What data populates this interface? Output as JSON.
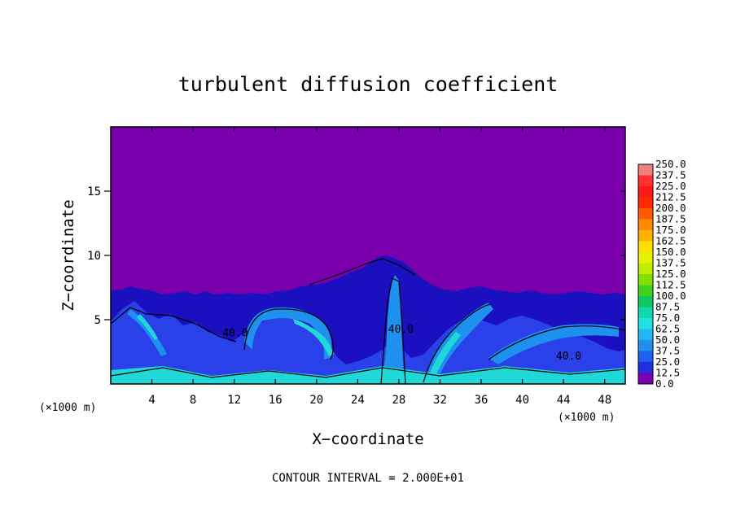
{
  "chart_data": {
    "type": "heatmap",
    "title": "turbulent diffusion coefficient",
    "xlabel": "X−coordinate",
    "ylabel": "Z−coordinate",
    "x_unit_left": "(×1000 m)",
    "x_unit_right": "(×1000 m)",
    "xlim": [
      0,
      50
    ],
    "ylim": [
      0,
      20
    ],
    "x_ticks": [
      4,
      8,
      12,
      16,
      20,
      24,
      28,
      32,
      36,
      40,
      44,
      48
    ],
    "y_ticks": [
      5,
      10,
      15
    ],
    "footer": "CONTOUR INTERVAL = 2.000E+01",
    "contour_labels": [
      {
        "text": "40.0",
        "x": 12.1,
        "z": 3.7
      },
      {
        "text": "40.0",
        "x": 28.2,
        "z": 4.0
      },
      {
        "text": "40.0",
        "x": 44.5,
        "z": 1.9
      }
    ],
    "colorbar": {
      "levels": [
        "250.0",
        "237.5",
        "225.0",
        "212.5",
        "200.0",
        "187.5",
        "175.0",
        "162.5",
        "150.0",
        "137.5",
        "125.0",
        "112.5",
        "100.0",
        "87.5",
        "75.0",
        "62.5",
        "50.0",
        "37.5",
        "25.0",
        "12.5",
        "0.0"
      ],
      "colors": [
        "#f08080",
        "#ff3030",
        "#ff1a1a",
        "#ff2a00",
        "#ff5a00",
        "#ff8c00",
        "#ffb000",
        "#ffe000",
        "#e8f000",
        "#c0ec00",
        "#80e000",
        "#40d020",
        "#10c860",
        "#10d8b0",
        "#20e0e0",
        "#20b8f0",
        "#2090f0",
        "#2060f0",
        "#2030e0",
        "#2010c8",
        "#7a00b0"
      ]
    },
    "field_colors": {
      "background": "#7b00ad",
      "low": "#1a10c0",
      "mid": "#2a40e8",
      "high": "#1e90ee",
      "peak": "#20d8d8",
      "max": "#40e080"
    }
  }
}
